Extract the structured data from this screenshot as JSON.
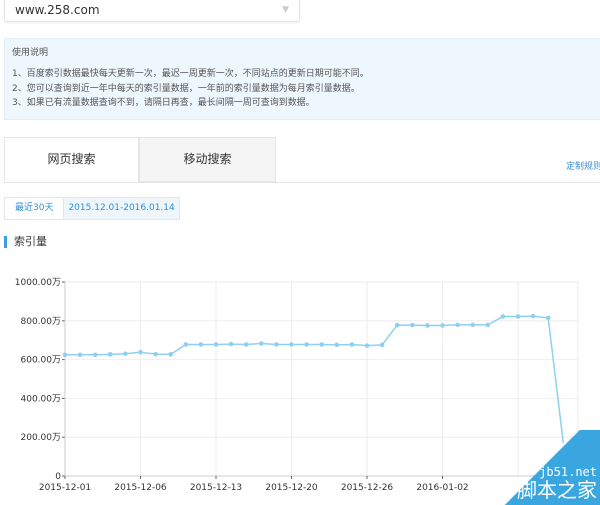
{
  "site_select": {
    "value": "www.258.com"
  },
  "help": {
    "title": "使用说明",
    "lines": [
      "1、百度索引数据最快每天更新一次，最迟一周更新一次，不同站点的更新日期可能不同。",
      "2、您可以查询到近一年中每天的索引量数据，一年前的索引量数据为每月索引量数据。",
      "3、如果已有流量数据查询不到，请隔日再查，最长间隔一周可查询到数据。"
    ]
  },
  "tabs": [
    {
      "label": "网页搜索",
      "active": true
    },
    {
      "label": "移动搜索",
      "active": false
    }
  ],
  "custom_link": "定制规则",
  "range": {
    "recent": "最近30天",
    "dates": "2015.12.01-2016.01.14"
  },
  "section_title": "索引量",
  "colors": {
    "accent": "#39a0df",
    "line": "#8fd0ef"
  },
  "watermark": {
    "site": "jb51.net",
    "name": "脚本之家"
  },
  "chart_data": {
    "type": "line",
    "y_ticks": [
      "0",
      "200.00万",
      "400.00万",
      "600.00万",
      "800.00万",
      "1000.00万"
    ],
    "ylim": [
      0,
      1000
    ],
    "x_tick_labels": [
      {
        "index": 0,
        "label": "2015-12-01"
      },
      {
        "index": 5,
        "label": "2015-12-06"
      },
      {
        "index": 10,
        "label": "2015-12-13"
      },
      {
        "index": 15,
        "label": "2015-12-20"
      },
      {
        "index": 20,
        "label": "2015-12-26"
      },
      {
        "index": 25,
        "label": "2016-01-02"
      }
    ],
    "grid": true,
    "values": [
      625,
      625,
      625,
      627,
      630,
      638,
      628,
      627,
      678,
      678,
      678,
      680,
      678,
      683,
      678,
      678,
      678,
      678,
      676,
      678,
      672,
      676,
      778,
      778,
      776,
      776,
      779,
      779,
      779,
      822,
      822,
      824,
      815,
      170
    ]
  }
}
